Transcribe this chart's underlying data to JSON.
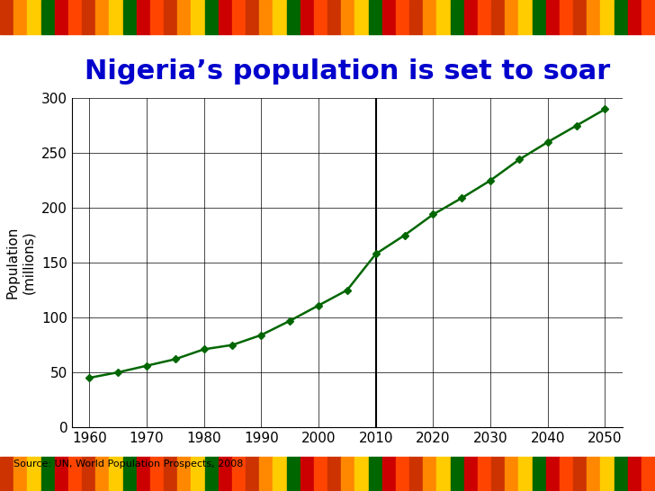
{
  "title": "Nigeria’s population is set to soar",
  "title_color": "#0000CC",
  "ylabel": "Population\n(millions)",
  "source_text": "Source: UN, World Population Prospects, 2008",
  "line_color": "#006600",
  "marker_color": "#006600",
  "background_color": "#FFFFFF",
  "years": [
    1960,
    1965,
    1970,
    1975,
    1980,
    1985,
    1990,
    1995,
    2000,
    2005,
    2010,
    2015,
    2020,
    2025,
    2030,
    2035,
    2040,
    2045,
    2050
  ],
  "population": [
    45,
    50,
    56,
    62,
    71,
    75,
    84,
    97,
    111,
    125,
    158,
    175,
    194,
    209,
    225,
    244,
    260,
    275,
    290
  ],
  "ylim": [
    0,
    300
  ],
  "yticks": [
    0,
    50,
    100,
    150,
    200,
    250,
    300
  ],
  "xlim": [
    1957,
    2053
  ],
  "xticks": [
    1960,
    1970,
    1980,
    1990,
    2000,
    2010,
    2020,
    2030,
    2040,
    2050
  ],
  "grid_color": "#000000",
  "vline_x": 2010,
  "fig_bg_color": "#FFFFFF",
  "kente_colors": [
    "#CC3300",
    "#FF8800",
    "#FFCC00",
    "#006600",
    "#CC0000",
    "#FF4400"
  ]
}
